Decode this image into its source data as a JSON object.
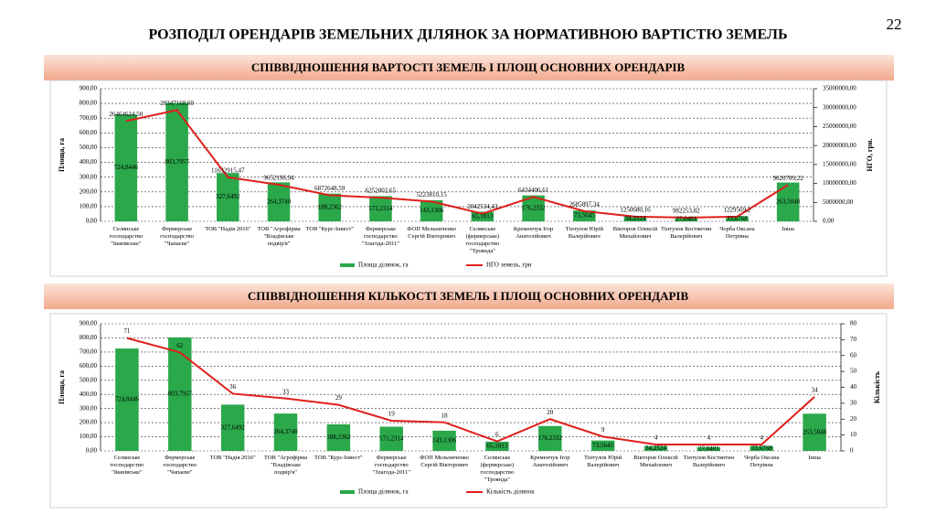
{
  "title": "РОЗПОДІЛ ОРЕНДАРІВ ЗЕМЕЛЬНИХ ДІЛЯНОК ЗА НОРМАТИВНОЮ ВАРТІСТЮ ЗЕМЕЛЬ",
  "page_number": 22,
  "chart_data": [
    {
      "type": "bar-line",
      "title": "СПІВВІДНОШЕННЯ ВАРТОСТІ ЗЕМЕЛЬ І ПЛОЩ ОСНОВНИХ ОРЕНДАРІВ",
      "ylabel": "Площа, га",
      "y2label": "НГО, грн.",
      "grid": true,
      "categories": [
        "Селянське господарство \"Іванівське\"",
        "Фермерське господарство \"Чапаєве\"",
        "ТОВ \"Надія 2016\"",
        "ТОВ \"Агрофірма \"Владівське подвір'я\"",
        "ТОВ \"Курс-Інвест\"",
        "Фермерське господарство \"Злагода-2011\"",
        "ФОП Мельниченко Сергій Вікторович",
        "Селянське (фермерське) господарство \"Троянда\"",
        "Кременчук Ігор Анатолійович",
        "Тінтулов Юрій Валерійович",
        "Вікторов Олексій Михайлович",
        "Тінтулов Костянтин Валерійович",
        "Чорба Оксана Петрівна",
        "Інша"
      ],
      "ylim": [
        0,
        900
      ],
      "yticks": [
        {
          "value": 0,
          "label": "0,00"
        },
        {
          "value": 100,
          "label": "100,00"
        },
        {
          "value": 200,
          "label": "200,00"
        },
        {
          "value": 300,
          "label": "300,00"
        },
        {
          "value": 400,
          "label": "400,00"
        },
        {
          "value": 500,
          "label": "500,00"
        },
        {
          "value": 600,
          "label": "600,00"
        },
        {
          "value": 700,
          "label": "700,00"
        },
        {
          "value": 800,
          "label": "800,00"
        },
        {
          "value": 900,
          "label": "900,00"
        }
      ],
      "y2lim": [
        0,
        35000000
      ],
      "y2ticks": [
        {
          "value": 0,
          "label": "0,00"
        },
        {
          "value": 5000000,
          "label": "5000000,00"
        },
        {
          "value": 10000000,
          "label": "10000000,00"
        },
        {
          "value": 15000000,
          "label": "15000000,00"
        },
        {
          "value": 20000000,
          "label": "20000000,00"
        },
        {
          "value": 25000000,
          "label": "25000000,00"
        },
        {
          "value": 30000000,
          "label": "30000000,00"
        },
        {
          "value": 35000000,
          "label": "35000000,00"
        }
      ],
      "series": [
        {
          "name": "Площа ділянок, га",
          "type": "bar",
          "axis": "y",
          "color": "#2aa84a",
          "values": [
            724.8446,
            803.7957,
            327.6492,
            264.374,
            188.2362,
            171.2314,
            143.1306,
            65.1813,
            176.2332,
            73.5645,
            34.2524,
            27.0401,
            33.6768,
            263.5048
          ],
          "value_labels": [
            "724,8446",
            "803,7957",
            "327,6492",
            "264,3740",
            "188,2362",
            "171,2314",
            "143,1306",
            "65,1813",
            "176,2332",
            "73,5645",
            "34,2524",
            "27,0401",
            "33,6768",
            "263,5048"
          ]
        },
        {
          "name": "НГО земель, грн",
          "type": "line",
          "axis": "y2",
          "color": "#e0201b",
          "values": [
            26464624.5,
            29347168.6,
            11632915.47,
            9652198.94,
            6872648.59,
            6252002.65,
            5223810.15,
            2042534.43,
            6434406.61,
            2685897.34,
            1250680.16,
            982253.82,
            1229569.2,
            9620789.22
          ],
          "value_labels": [
            "26464624,50",
            "29347168,60",
            "11632915,47",
            "9652198,94",
            "6872648,59",
            "6252002,65",
            "5223810,15",
            "2042534,43",
            "6434406,61",
            "2685897,34",
            "1250680,16",
            "982253,82",
            "1229569,2",
            "9620789,22"
          ]
        }
      ]
    },
    {
      "type": "bar-line",
      "title": "СПІВВІДНОШЕННЯ КІЛЬКОСТІ ЗЕМЕЛЬ І ПЛОЩ ОСНОВНИХ ОРЕНДАРІВ",
      "ylabel": "Площа, га",
      "y2label": "Кількість",
      "grid": true,
      "categories": [
        "Селянське господарство \"Іванівське\"",
        "Фермерське господарство \"Чапаєве\"",
        "ТОВ \"Надія 2016\"",
        "ТОВ \"Агрофірма \"Владівське подвір'я\"",
        "ТОВ \"Курс-Інвест\"",
        "Фермерське господарство \"Злагода-2011\"",
        "ФОП Мельниченко Сергій Вікторович",
        "Селянське (фермерське) господарство \"Троянда\"",
        "Кременчук Ігор Анатолійович",
        "Тінтулов Юрій Валерійович",
        "Вікторов Олексій Михайлович",
        "Тінтулов Костянтин Валерійович",
        "Чорба Оксана Петрівна",
        "Інша"
      ],
      "ylim": [
        0,
        900
      ],
      "yticks": [
        {
          "value": 0,
          "label": "0,00"
        },
        {
          "value": 100,
          "label": "100,00"
        },
        {
          "value": 200,
          "label": "200,00"
        },
        {
          "value": 300,
          "label": "300,00"
        },
        {
          "value": 400,
          "label": "400,00"
        },
        {
          "value": 500,
          "label": "500,00"
        },
        {
          "value": 600,
          "label": "600,00"
        },
        {
          "value": 700,
          "label": "700,00"
        },
        {
          "value": 800,
          "label": "800,00"
        },
        {
          "value": 900,
          "label": "900,00"
        }
      ],
      "y2lim": [
        0,
        80
      ],
      "y2ticks": [
        0,
        10,
        20,
        30,
        40,
        50,
        60,
        70,
        80
      ],
      "series": [
        {
          "name": "Площа ділянок, га",
          "type": "bar",
          "axis": "y",
          "color": "#2aa84a",
          "values": [
            724.8446,
            803.7957,
            327.6492,
            264.374,
            188.2362,
            171.2314,
            143.1306,
            65.1813,
            176.2332,
            73.5645,
            34.2524,
            27.0401,
            33.6768,
            263.5048
          ],
          "value_labels": [
            "724,8446",
            "803,7957",
            "327,6492",
            "264,3740",
            "188,2362",
            "171,2314",
            "143,1306",
            "65,1813",
            "176,2332",
            "73,5645",
            "34,2524",
            "27,0401",
            "33,6768",
            "263,5048"
          ]
        },
        {
          "name": "Кількість ділянок",
          "type": "line",
          "axis": "y2",
          "color": "#e0201b",
          "values": [
            71,
            62,
            36,
            33,
            29,
            19,
            18,
            6,
            20,
            9,
            4,
            4,
            4,
            34
          ]
        }
      ]
    }
  ]
}
